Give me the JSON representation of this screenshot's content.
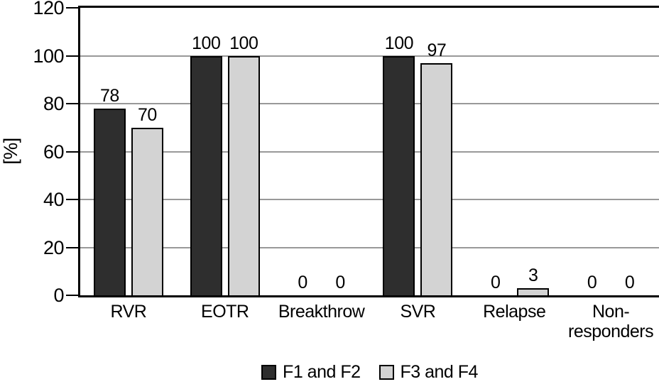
{
  "chart_data": {
    "type": "bar",
    "categories": [
      "RVR",
      "EOTR",
      "Breakthrow",
      "SVR",
      "Relapse",
      "Non-\nresponders"
    ],
    "series": [
      {
        "name": "F1 and F2",
        "color": "#2e2e2e",
        "values": [
          78,
          100,
          0,
          100,
          0,
          0
        ]
      },
      {
        "name": "F3 and F4",
        "color": "#d3d3d3",
        "values": [
          70,
          100,
          0,
          97,
          3,
          0
        ]
      }
    ],
    "title": "",
    "xlabel": "",
    "ylabel": "[%]",
    "ylim": [
      0,
      120
    ],
    "yticks": [
      0,
      20,
      40,
      60,
      80,
      100,
      120
    ],
    "grid": true,
    "legend_position": "bottom",
    "colors": {
      "axis": "#000000",
      "gridline": "#999999",
      "bar_border": "#000000",
      "background": "#ffffff"
    }
  }
}
